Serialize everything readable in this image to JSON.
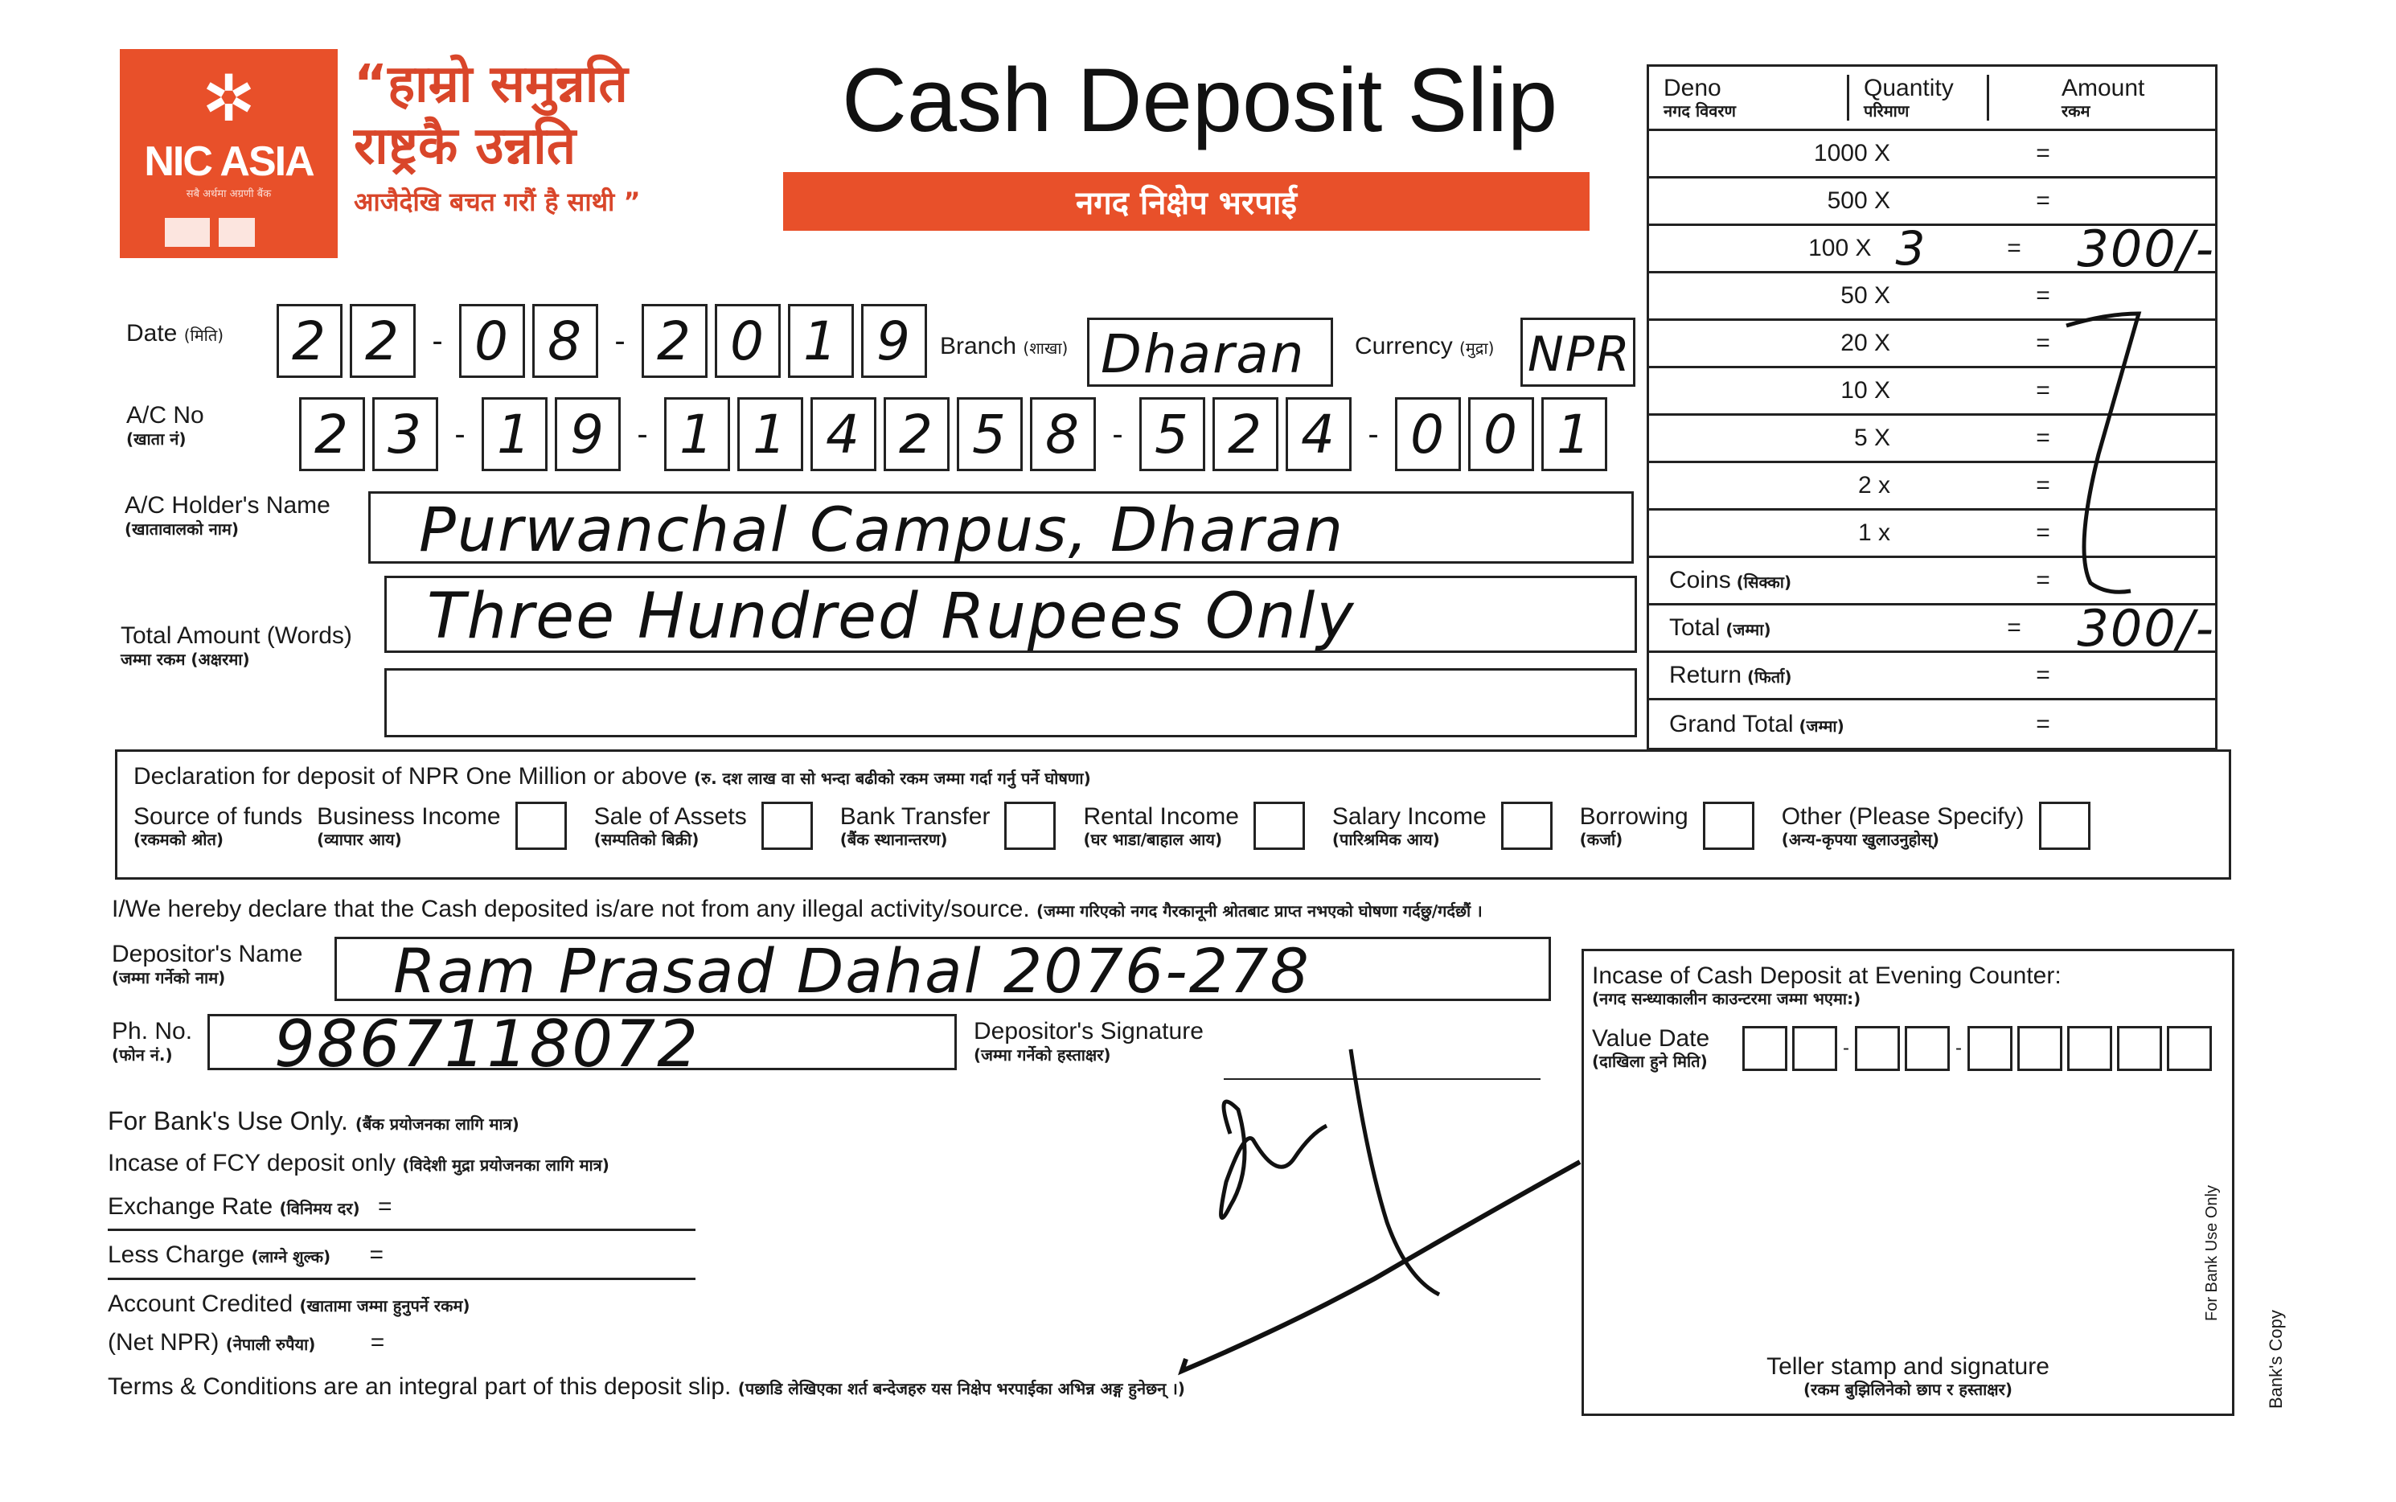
{
  "colors": {
    "brand": "#e8502a",
    "ink": "#1a1a1a"
  },
  "logo": {
    "brand": "NIC ASIA",
    "icon": "nic-asia-star-icon",
    "tagline": "सबै अर्थमा अग्रणी बैंक"
  },
  "slogan": {
    "line1": "“हाम्रो समुन्नति",
    "line2": "राष्ट्रकै उन्नति",
    "line3": "आजैदेखि बचत गरौं है साथी ”"
  },
  "title": "Cash Deposit Slip",
  "subtitle_np": "नगद निक्षेप भरपाई",
  "date": {
    "label": "Date",
    "label_np": "(मिति)",
    "groups": [
      [
        "2",
        "2"
      ],
      [
        "0",
        "8"
      ],
      [
        "2",
        "0",
        "1",
        "9"
      ]
    ]
  },
  "branch": {
    "label": "Branch",
    "label_np": "(शाखा)",
    "value": "Dharan"
  },
  "currency": {
    "label": "Currency",
    "label_np": "(मुद्रा)",
    "value": "NPR"
  },
  "account_no": {
    "label": "A/C No",
    "label_np": "(खाता नं)",
    "groups": [
      [
        "2",
        "3"
      ],
      [
        "1",
        "9"
      ],
      [
        "1",
        "1",
        "4",
        "2",
        "5",
        "8"
      ],
      [
        "5",
        "2",
        "4"
      ],
      [
        "0",
        "0",
        "1"
      ]
    ]
  },
  "holder_name": {
    "label": "A/C Holder's Name",
    "label_np": "(खातावालको नाम)",
    "value": "Purwanchal Campus, Dharan"
  },
  "amount_words": {
    "label": "Total Amount (Words)",
    "label_np": "जम्मा रकम (अक्षरमा)",
    "value": "Three Hundred Rupees Only"
  },
  "denomination_table": {
    "headers": [
      {
        "en": "Deno",
        "np": "नगद विवरण"
      },
      {
        "en": "Quantity",
        "np": "परिमाण"
      },
      {
        "en": "Amount",
        "np": "रकम"
      }
    ],
    "rows": [
      {
        "deno": "1000 X",
        "quantity": "",
        "amount": ""
      },
      {
        "deno": "500 X",
        "quantity": "",
        "amount": ""
      },
      {
        "deno": "100 X",
        "quantity": "3",
        "amount": "300/-"
      },
      {
        "deno": "50 X",
        "quantity": "",
        "amount": ""
      },
      {
        "deno": "20 X",
        "quantity": "",
        "amount": ""
      },
      {
        "deno": "10 X",
        "quantity": "",
        "amount": ""
      },
      {
        "deno": "5 X",
        "quantity": "",
        "amount": ""
      },
      {
        "deno": "2 x",
        "quantity": "",
        "amount": ""
      },
      {
        "deno": "1 x",
        "quantity": "",
        "amount": ""
      },
      {
        "deno": "Coins",
        "deno_np": "(सिक्का)",
        "quantity": "",
        "amount": ""
      },
      {
        "deno": "Total",
        "deno_np": "(जम्मा)",
        "quantity": "",
        "amount": "300/-"
      },
      {
        "deno": "Return",
        "deno_np": "(फिर्ता)",
        "quantity": "",
        "amount": ""
      },
      {
        "deno": "Grand Total",
        "deno_np": "(जम्मा)",
        "quantity": "",
        "amount": ""
      }
    ],
    "equals": "="
  },
  "declaration": {
    "title": "Declaration for deposit of NPR One Million or above",
    "title_np": "(रु. दश लाख वा सो भन्दा बढीको रकम जम्मा गर्दा गर्नु पर्ने घोषणा)",
    "source_label": "Source of funds",
    "source_label_np": "(रकमको श्रोत)",
    "options": [
      {
        "en": "Business Income",
        "np": "(व्यापार आय)",
        "checked": false
      },
      {
        "en": "Sale of Assets",
        "np": "(सम्पतिको बिक्री)",
        "checked": false
      },
      {
        "en": "Bank Transfer",
        "np": "(बैंक स्थानान्तरण)",
        "checked": false
      },
      {
        "en": "Rental Income",
        "np": "(घर भाडा/बाहाल आय)",
        "checked": false
      },
      {
        "en": "Salary Income",
        "np": "(पारिश्रमिक आय)",
        "checked": false
      },
      {
        "en": "Borrowing",
        "np": "(कर्जा)",
        "checked": false
      },
      {
        "en": "Other (Please Specify)",
        "np": "(अन्य-कृपया खुलाउनुहोस्)",
        "checked": false
      }
    ]
  },
  "hereby": {
    "en": "I/We hereby declare that the Cash deposited is/are not from any illegal activity/source.",
    "np": "(जम्मा गरिएको नगद गैरकानूनी श्रोतबाट प्राप्त नभएको घोषणा गर्दछु/गर्दछौं ।"
  },
  "depositor_name": {
    "label": "Depositor's Name",
    "label_np": "(जम्मा गर्नेको नाम)",
    "value": "Ram Prasad Dahal 2076-278"
  },
  "phone": {
    "label": "Ph. No.",
    "label_np": "(फोन नं.)",
    "value": "9867118072"
  },
  "depositor_signature": {
    "label": "Depositor's Signature",
    "label_np": "(जम्मा गर्नेको हस्ताक्षर)"
  },
  "bank_use": {
    "title": "For Bank's Use Only.",
    "title_np": "(बैंक प्रयोजनका लागि मात्र)",
    "fcy": "Incase of FCY deposit only",
    "fcy_np": "(विदेशी मुद्रा प्रयोजनका लागि मात्र)",
    "exchange_rate": "Exchange Rate",
    "exchange_rate_np": "(विनिमय दर)",
    "less_charge": "Less Charge",
    "less_charge_np": "(लाग्ने शुल्क)",
    "account_credited": "Account Credited",
    "account_credited_np": "(खातामा जम्मा हुनुपर्ने रकम)",
    "net_npr": "(Net NPR)",
    "net_npr_np": "(नेपाली रुपैया)",
    "equals": "="
  },
  "terms": {
    "en": "Terms & Conditions are an integral part of this deposit slip.",
    "np": "(पछाडि लेखिएका शर्त बन्देजहरु यस निक्षेप भरपाईका अभिन्न अङ्ग हुनेछन् ।)"
  },
  "evening_counter": {
    "title": "Incase of Cash Deposit at Evening Counter:",
    "title_np": "(नगद सन्ध्याकालीन काउन्टरमा जम्मा भएमा:)",
    "value_date": "Value Date",
    "value_date_np": "(दाखिला हुने मिति)",
    "value_date_groups": [
      2,
      2,
      5
    ],
    "teller": "Teller stamp and signature",
    "teller_np": "(रकम बुझिलिनेको छाप र हस्ताक्षर)",
    "for_bank_use": "For Bank Use Only"
  },
  "copy_label": "Bank's Copy"
}
